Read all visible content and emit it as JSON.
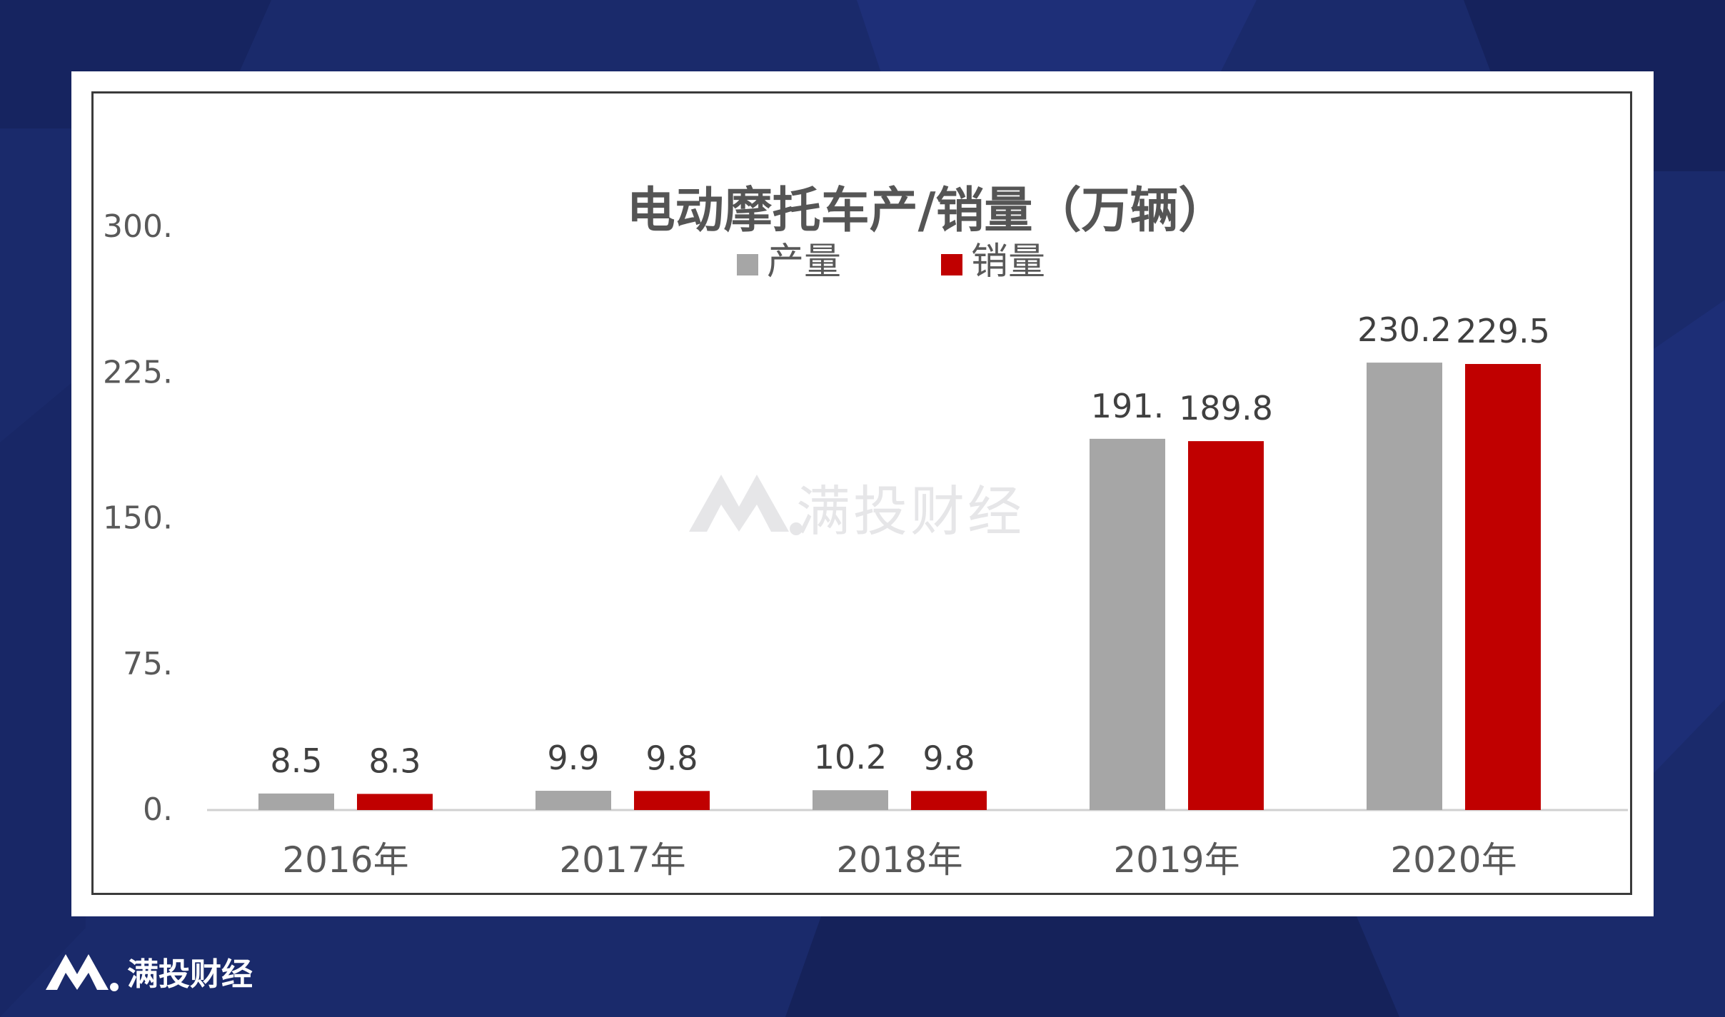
{
  "brand": {
    "name": "满投财经"
  },
  "colors": {
    "background": "#1a2a6b",
    "production": "#a6a6a6",
    "sales": "#c00000"
  },
  "chart_data": {
    "type": "bar",
    "title": "电动摩托车产/销量（万辆）",
    "categories": [
      "2016年",
      "2017年",
      "2018年",
      "2019年",
      "2020年"
    ],
    "series": [
      {
        "name": "产量",
        "values": [
          8.5,
          9.9,
          10.2,
          191.0,
          230.2
        ],
        "labels": [
          "8.5",
          "9.9",
          "10.2",
          "191.",
          "230.2"
        ],
        "color": "#a6a6a6"
      },
      {
        "name": "销量",
        "values": [
          8.3,
          9.8,
          9.8,
          189.8,
          229.5
        ],
        "labels": [
          "8.3",
          "9.8",
          "9.8",
          "189.8",
          "229.5"
        ],
        "color": "#c00000"
      }
    ],
    "ylim": [
      0,
      300
    ],
    "yticks": [
      0,
      75,
      150,
      225,
      300
    ],
    "ytick_labels": [
      "0.",
      "75.",
      "150.",
      "225.",
      "300."
    ],
    "legend": "top-center",
    "grid": false,
    "xlabel": "",
    "ylabel": ""
  }
}
